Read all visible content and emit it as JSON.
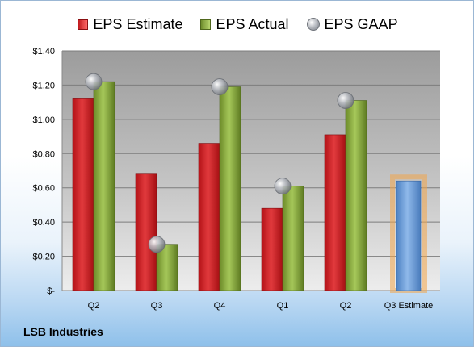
{
  "legend": {
    "estimate": "EPS Estimate",
    "actual": "EPS Actual",
    "gaap": "EPS GAAP"
  },
  "company": "LSB Industries",
  "colors": {
    "estimate": "#c8262a",
    "actual": "#8db33f",
    "gaap": "#a7abb2",
    "projection": "#6fa0d8",
    "projection_glow": "#f3a64a"
  },
  "chart_data": {
    "type": "bar",
    "categories": [
      "Q2",
      "Q3",
      "Q4",
      "Q1",
      "Q2",
      "Q3 Estimate"
    ],
    "ylim": [
      0,
      1.4
    ],
    "yticks": [
      0,
      0.2,
      0.4,
      0.6,
      0.8,
      1.0,
      1.2,
      1.4
    ],
    "ytick_labels": [
      "$-",
      "$0.20",
      "$0.40",
      "$0.60",
      "$0.80",
      "$1.00",
      "$1.20",
      "$1.40"
    ],
    "grid": true,
    "legend_position": "top",
    "series": [
      {
        "name": "EPS Estimate",
        "values": [
          1.12,
          0.68,
          0.86,
          0.48,
          0.91,
          null
        ]
      },
      {
        "name": "EPS Actual",
        "values": [
          1.22,
          0.27,
          1.19,
          0.61,
          1.11,
          null
        ]
      },
      {
        "name": "EPS GAAP",
        "values": [
          1.22,
          0.27,
          1.19,
          0.61,
          1.11,
          null
        ]
      }
    ],
    "projection": {
      "category": "Q3 Estimate",
      "value": 0.64
    }
  }
}
